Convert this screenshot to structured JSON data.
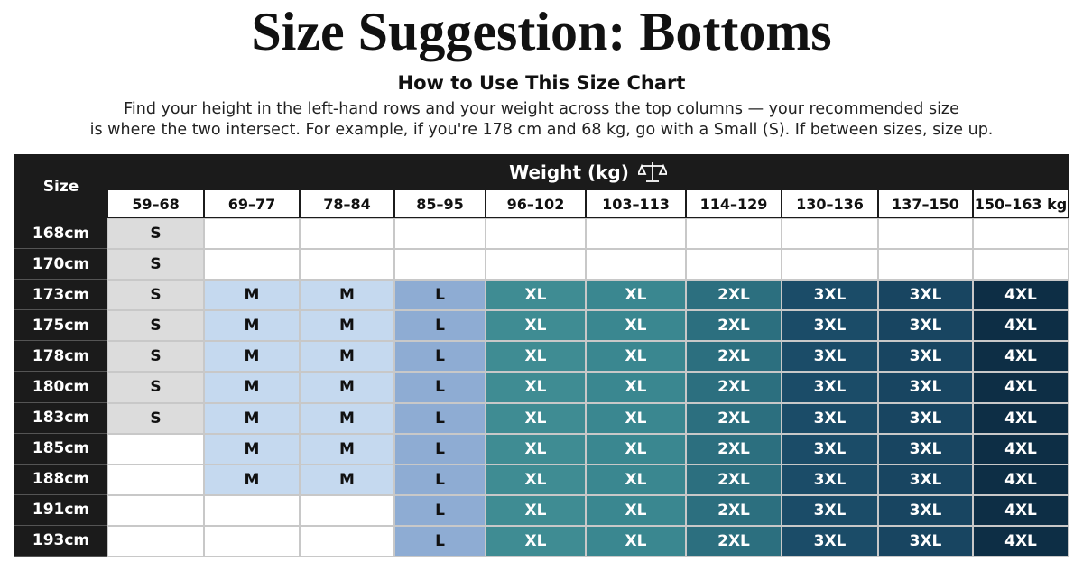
{
  "header": {
    "title": "Size Suggestion: Bottoms",
    "subtitle": "How to Use This Size Chart",
    "description": [
      "Find your height in the left-hand rows and your weight across the top columns — your recommended size",
      "is where the two intersect. For example, if you're 178 cm and 68 kg, go with a Small (S). If between sizes, size up."
    ]
  },
  "table": {
    "corner": "Size",
    "weight_label": "Weight (kg)",
    "columns": [
      "59–68",
      "69–77",
      "78–84",
      "85–95",
      "96–102",
      "103–113",
      "114–129",
      "130–136",
      "137–150",
      "150–163 kg"
    ],
    "rows": [
      {
        "height": "168cm",
        "cells": [
          "S",
          null,
          null,
          null,
          null,
          null,
          null,
          null,
          null,
          null
        ]
      },
      {
        "height": "170cm",
        "cells": [
          "S",
          null,
          null,
          null,
          null,
          null,
          null,
          null,
          null,
          null
        ]
      },
      {
        "height": "173cm",
        "cells": [
          "S",
          "M",
          "M",
          "L",
          "XL",
          "XL",
          "2XL",
          "3XL",
          "3XL",
          "4XL"
        ]
      },
      {
        "height": "175cm",
        "cells": [
          "S",
          "M",
          "M",
          "L",
          "XL",
          "XL",
          "2XL",
          "3XL",
          "3XL",
          "4XL"
        ]
      },
      {
        "height": "178cm",
        "cells": [
          "S",
          "M",
          "M",
          "L",
          "XL",
          "XL",
          "2XL",
          "3XL",
          "3XL",
          "4XL"
        ]
      },
      {
        "height": "180cm",
        "cells": [
          "S",
          "M",
          "M",
          "L",
          "XL",
          "XL",
          "2XL",
          "3XL",
          "3XL",
          "4XL"
        ]
      },
      {
        "height": "183cm",
        "cells": [
          "S",
          "M",
          "M",
          "L",
          "XL",
          "XL",
          "2XL",
          "3XL",
          "3XL",
          "4XL"
        ]
      },
      {
        "height": "185cm",
        "cells": [
          null,
          "M",
          "M",
          "L",
          "XL",
          "XL",
          "2XL",
          "3XL",
          "3XL",
          "4XL"
        ]
      },
      {
        "height": "188cm",
        "cells": [
          null,
          "M",
          "M",
          "L",
          "XL",
          "XL",
          "2XL",
          "3XL",
          "3XL",
          "4XL"
        ]
      },
      {
        "height": "191cm",
        "cells": [
          null,
          null,
          null,
          "L",
          "XL",
          "XL",
          "2XL",
          "3XL",
          "3XL",
          "4XL"
        ]
      },
      {
        "height": "193cm",
        "cells": [
          null,
          null,
          null,
          "L",
          "XL",
          "XL",
          "2XL",
          "3XL",
          "3XL",
          "4XL"
        ]
      }
    ]
  }
}
